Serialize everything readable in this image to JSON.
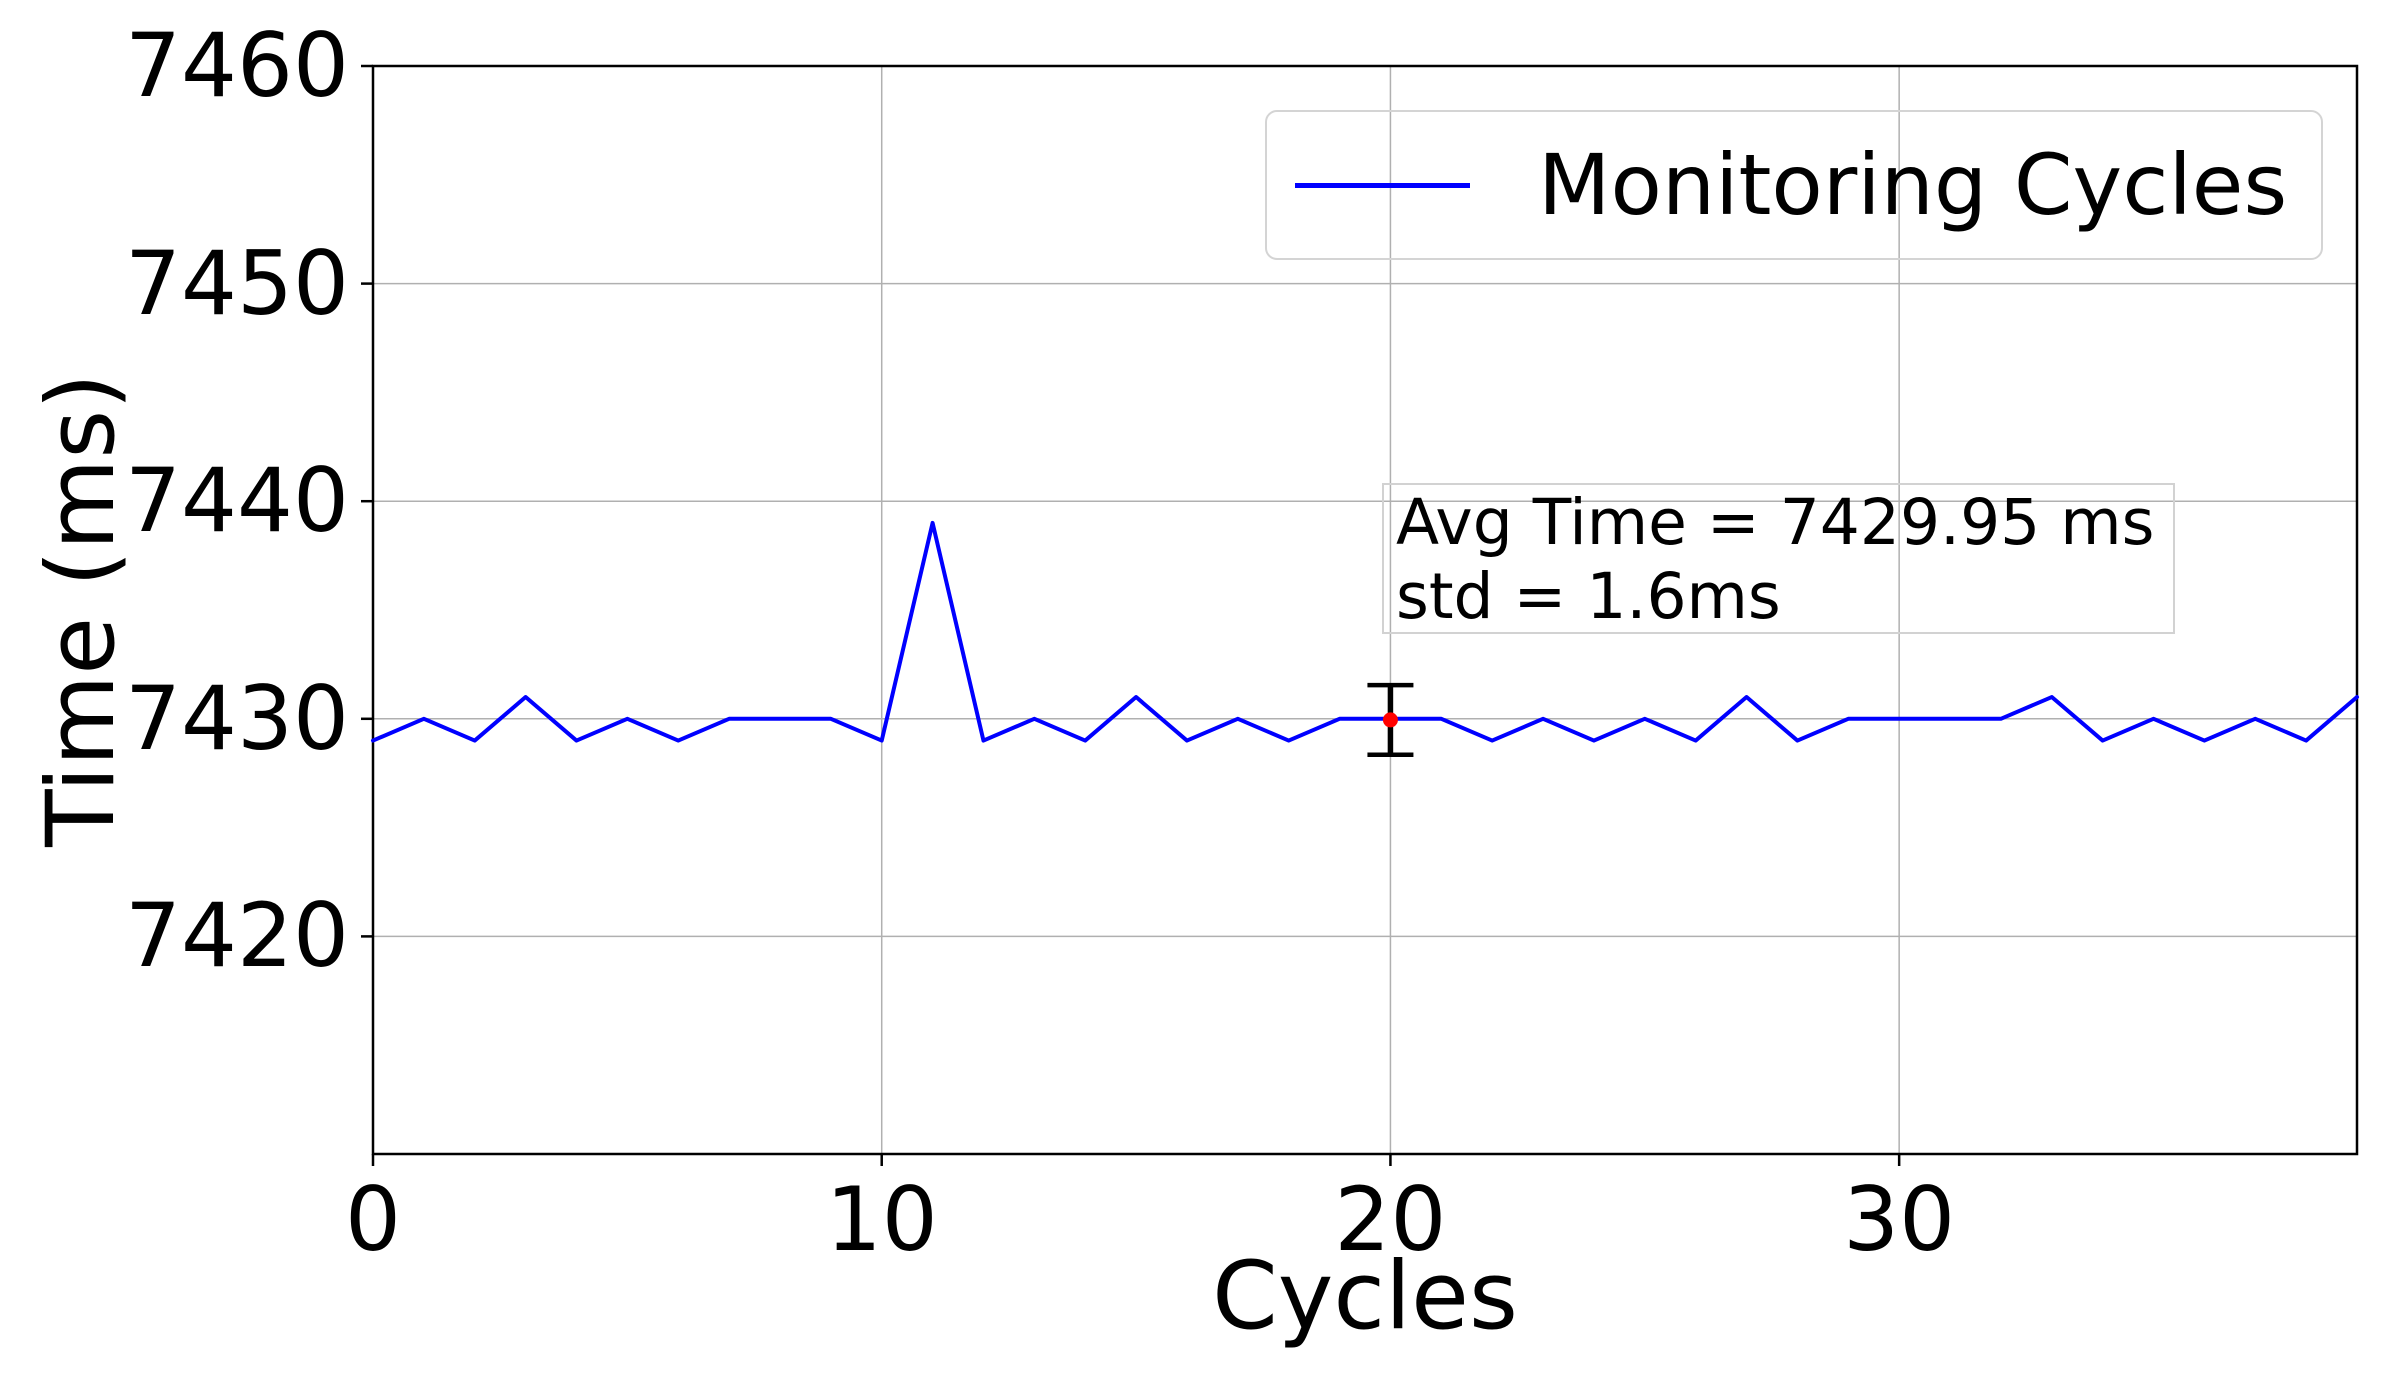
{
  "chart_data": {
    "type": "line",
    "title": "",
    "xlabel": "Cycles",
    "ylabel": "Time (ms)",
    "grid": true,
    "legend_position": "upper right",
    "xlim": [
      0,
      39
    ],
    "ylim": [
      7410,
      7460
    ],
    "xtick_values": [
      0,
      10,
      20,
      30
    ],
    "xtick_labels": [
      "0",
      "10",
      "20",
      "30"
    ],
    "ytick_values": [
      7420,
      7430,
      7440,
      7450,
      7460
    ],
    "ytick_labels": [
      "7420",
      "7430",
      "7440",
      "7450",
      "7460"
    ],
    "x": [
      0,
      1,
      2,
      3,
      4,
      5,
      6,
      7,
      8,
      9,
      10,
      11,
      12,
      13,
      14,
      15,
      16,
      17,
      18,
      19,
      20,
      21,
      22,
      23,
      24,
      25,
      26,
      27,
      28,
      29,
      30,
      31,
      32,
      33,
      34,
      35,
      36,
      37,
      38,
      39
    ],
    "series": [
      {
        "name": "Monitoring Cycles",
        "color": "#0000ff",
        "values": [
          7429,
          7430,
          7429,
          7431,
          7429,
          7430,
          7429,
          7430,
          7430,
          7430,
          7429,
          7439,
          7429,
          7430,
          7429,
          7431,
          7429,
          7430,
          7429,
          7430,
          7430,
          7430,
          7429,
          7430,
          7429,
          7430,
          7429,
          7431,
          7429,
          7430,
          7430,
          7430,
          7430,
          7431,
          7429,
          7430,
          7429,
          7430,
          7429,
          7431
        ]
      }
    ],
    "legend": [
      {
        "label": "Monitoring Cycles",
        "color": "#0000ff"
      }
    ],
    "annotation": {
      "line1": "Avg Time = 7429.95 ms",
      "line2": "std = 1.6ms"
    },
    "errorbar": {
      "x": 20,
      "y": 7429.95,
      "std": 1.6,
      "point_color": "#ff0000",
      "bar_color": "#000000"
    },
    "colors": {
      "line": "#0000ff",
      "grid": "#b0b0b0",
      "spine": "#000000",
      "background": "#ffffff"
    }
  }
}
